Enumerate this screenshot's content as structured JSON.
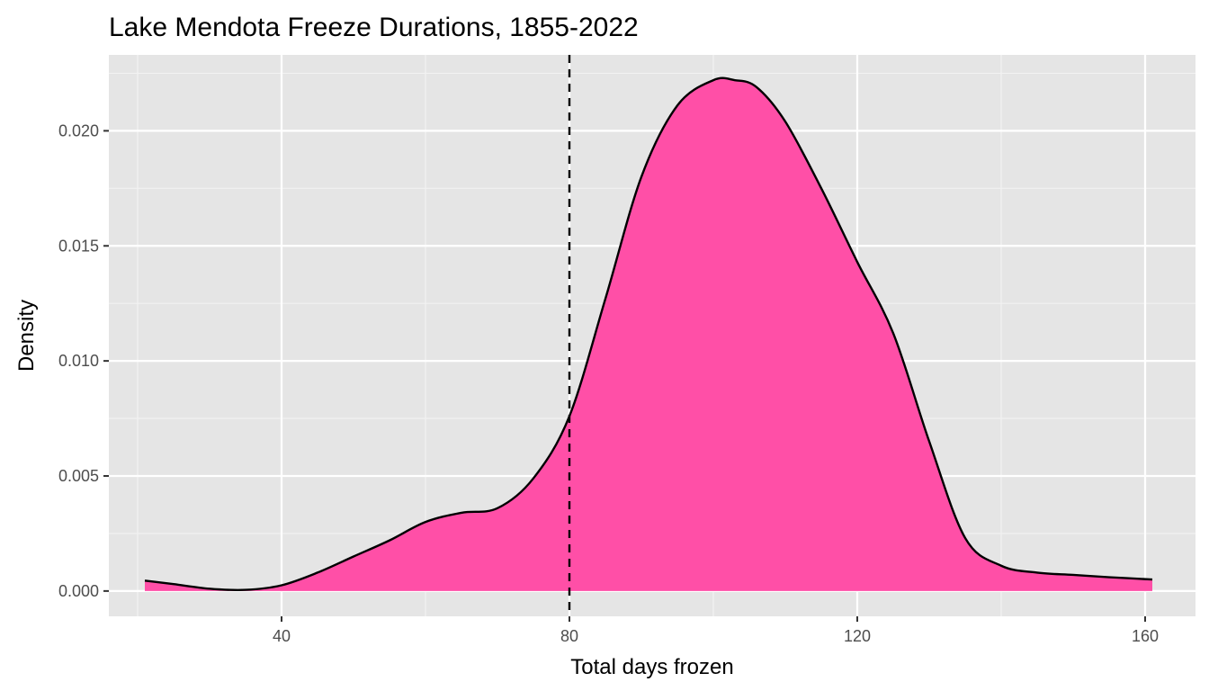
{
  "chart_data": {
    "type": "area",
    "title": "Lake Mendota Freeze Durations, 1855-2022",
    "xlabel": "Total days frozen",
    "ylabel": "Density",
    "xlim": [
      16,
      167
    ],
    "ylim": [
      -0.0011,
      0.0233
    ],
    "x_ticks": [
      40,
      80,
      120,
      160
    ],
    "x_tick_labels": [
      "40",
      "80",
      "120",
      "160"
    ],
    "y_ticks": [
      0.0,
      0.005,
      0.01,
      0.015,
      0.02
    ],
    "y_tick_labels": [
      "0.000",
      "0.005",
      "0.010",
      "0.015",
      "0.020"
    ],
    "grid": true,
    "reference_line": {
      "x": 80,
      "style": "dashed",
      "color": "#000000"
    },
    "series": [
      {
        "fill": "#ff4fa7",
        "stroke": "#000000",
        "x": [
          21,
          25,
          30,
          35,
          40,
          45,
          50,
          55,
          60,
          65,
          70,
          75,
          80,
          85,
          90,
          95,
          100,
          103,
          106,
          110,
          115,
          120,
          125,
          130,
          135,
          140,
          145,
          150,
          155,
          161
        ],
        "y": [
          0.00045,
          0.0003,
          0.0001,
          5e-05,
          0.00025,
          0.0008,
          0.0015,
          0.0022,
          0.003,
          0.0034,
          0.0036,
          0.0049,
          0.0076,
          0.0127,
          0.018,
          0.0211,
          0.0222,
          0.0222,
          0.0219,
          0.0204,
          0.0175,
          0.0143,
          0.0112,
          0.0065,
          0.0023,
          0.0011,
          0.0008,
          0.0007,
          0.0006,
          0.0005
        ]
      }
    ]
  },
  "colors": {
    "panel_background": "#e5e5e5",
    "grid_major": "#ffffff",
    "grid_minor": "#f2f2f2",
    "density_fill": "#ff4fa7",
    "outline": "#000000"
  }
}
